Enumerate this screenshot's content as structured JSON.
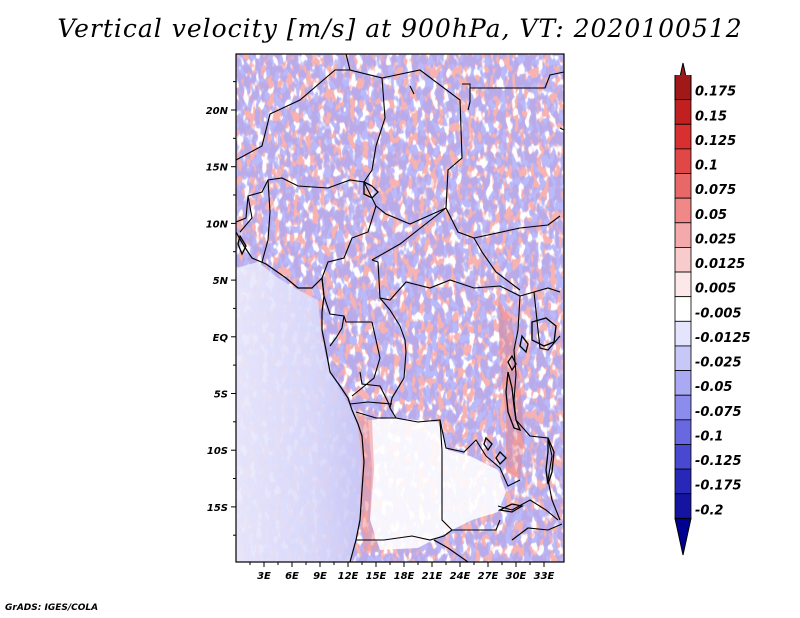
{
  "title": "Vertical velocity [m/s] at 900hPa, VT: 2020100512",
  "credit": "GrADS: IGES/COLA",
  "map": {
    "lon_ticks": [
      "3E",
      "6E",
      "9E",
      "12E",
      "15E",
      "18E",
      "21E",
      "24E",
      "27E",
      "30E",
      "33E"
    ],
    "lat_ticks": [
      "20N",
      "15N",
      "10N",
      "5N",
      "EQ",
      "5S",
      "10S",
      "15S"
    ]
  },
  "colorbar": {
    "levels": [
      "0.175",
      "0.15",
      "0.125",
      "0.1",
      "0.075",
      "0.05",
      "0.025",
      "0.0125",
      "0.005",
      "-0.005",
      "-0.0125",
      "-0.025",
      "-0.05",
      "-0.075",
      "-0.1",
      "-0.125",
      "-0.175",
      "-0.2"
    ],
    "colors": [
      "#a01818",
      "#c02020",
      "#d83030",
      "#e04848",
      "#e86868",
      "#f08888",
      "#f4aaaa",
      "#f8cccc",
      "#fce8e8",
      "#ffffff",
      "#e4e4fc",
      "#c8c8f8",
      "#aaaaf4",
      "#8c8cec",
      "#6868e0",
      "#4848d0",
      "#2828b8",
      "#1414a0",
      "#000090"
    ]
  }
}
